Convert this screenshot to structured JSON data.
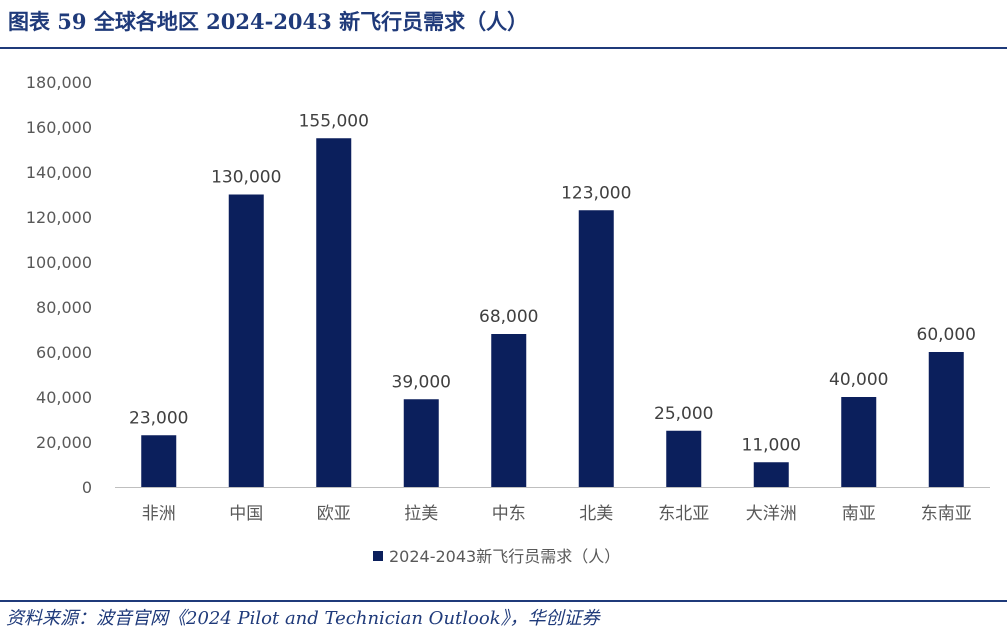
{
  "header": {
    "title": "图表 59    全球各地区 2024-2043 新飞行员需求（人）"
  },
  "footer": {
    "source": "资料来源：波音官网《2024 Pilot and Technician Outlook》，华创证券"
  },
  "colors": {
    "bar": "#0b1f5c",
    "accent": "#1f3a7a",
    "axis_text": "#595959"
  },
  "chart_data": {
    "type": "bar",
    "categories": [
      "非洲",
      "中国",
      "欧亚",
      "拉美",
      "中东",
      "北美",
      "东北亚",
      "大洋洲",
      "南亚",
      "东南亚"
    ],
    "series": [
      {
        "name": "2024-2043新飞行员需求（人）",
        "values": [
          23000,
          130000,
          155000,
          39000,
          68000,
          123000,
          25000,
          11000,
          40000,
          60000
        ]
      }
    ],
    "data_labels": [
      "23,000",
      "130,000",
      "155,000",
      "39,000",
      "68,000",
      "123,000",
      "25,000",
      "11,000",
      "40,000",
      "60,000"
    ],
    "y_ticks": [
      "0",
      "20,000",
      "40,000",
      "60,000",
      "80,000",
      "100,000",
      "120,000",
      "140,000",
      "160,000",
      "180,000"
    ],
    "ylim": [
      0,
      180000
    ],
    "title": "",
    "xlabel": "",
    "ylabel": "",
    "grid": false,
    "legend_position": "bottom"
  }
}
